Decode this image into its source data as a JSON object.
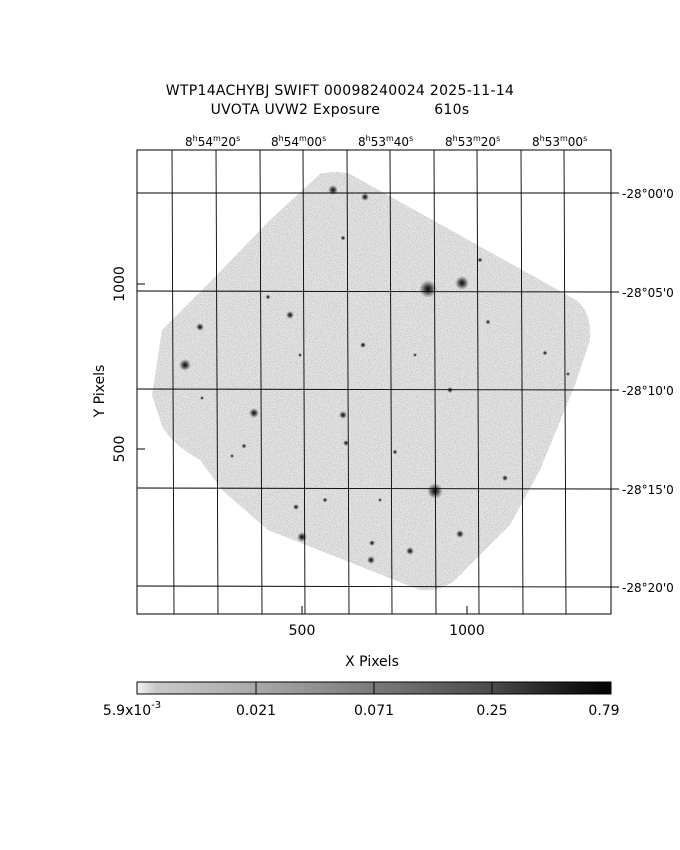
{
  "header": {
    "title_line1": "WTP14ACHYBJ SWIFT 00098240024 2025-11-14",
    "title_instrument": "UVOTA UVW2 Exposure",
    "title_exposure": "610s"
  },
  "axes": {
    "x_title": "X Pixels",
    "y_title": "Y Pixels",
    "x_ticks": [
      "500",
      "1000"
    ],
    "y_ticks": [
      "500",
      "1000"
    ],
    "ra_ticks": [
      {
        "h": "8",
        "m": "54",
        "s": "20"
      },
      {
        "h": "8",
        "m": "54",
        "s": "00"
      },
      {
        "h": "8",
        "m": "53",
        "s": "40"
      },
      {
        "h": "8",
        "m": "53",
        "s": "20"
      },
      {
        "h": "8",
        "m": "53",
        "s": "00"
      }
    ],
    "dec_ticks": [
      "-28°00'0",
      "-28°05'0",
      "-28°10'0",
      "-28°15'0",
      "-28°20'0"
    ]
  },
  "colorbar": {
    "labels": [
      "5.9x10-3",
      "0.021",
      "0.071",
      "0.25",
      "0.79"
    ],
    "first_label": {
      "base": "5.9x10",
      "exp": "-3"
    }
  }
}
